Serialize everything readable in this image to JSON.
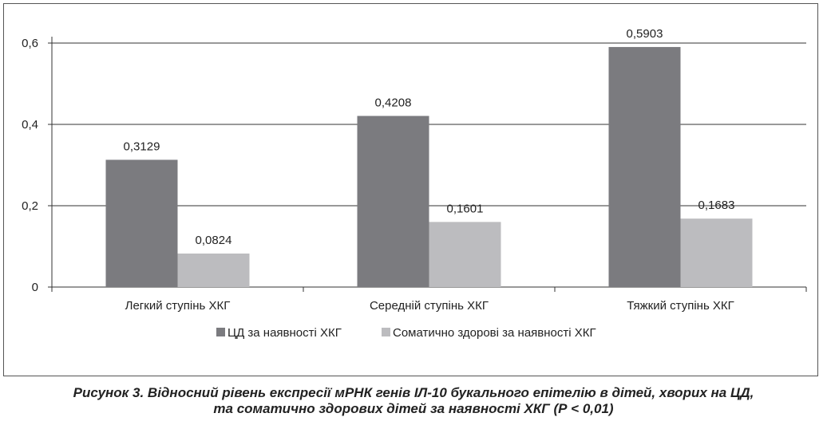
{
  "chart_data": {
    "type": "bar",
    "categories": [
      "Легкий ступінь ХКГ",
      "Середній ступінь ХКГ",
      "Тяжкий ступінь ХКГ"
    ],
    "series": [
      {
        "name": "ЦД за наявності ХКГ",
        "values": [
          0.3129,
          0.4208,
          0.5903
        ],
        "labels": [
          "0,3129",
          "0,4208",
          "0,5903"
        ],
        "color": "#7b7b7f"
      },
      {
        "name": "Соматично здорові за наявності ХКГ",
        "values": [
          0.0824,
          0.1601,
          0.1683
        ],
        "labels": [
          "0,0824",
          "0,1601",
          "0,1683"
        ],
        "color": "#bcbcbf"
      }
    ],
    "ylim": [
      0,
      0.6
    ],
    "yticks": [
      0,
      0.2,
      0.4,
      0.6
    ],
    "ytick_labels": [
      "0",
      "0,2",
      "0,4",
      "0,6"
    ],
    "grid": true,
    "legend_position": "bottom"
  },
  "caption": {
    "line1": "Рисунок 3. Відносний рівень експресії мРНК генів ІЛ-10 букального епітелію в дітей, хворих на ЦД,",
    "line2": "та соматично здорових дітей за наявності ХКГ (Р < 0,01)"
  }
}
